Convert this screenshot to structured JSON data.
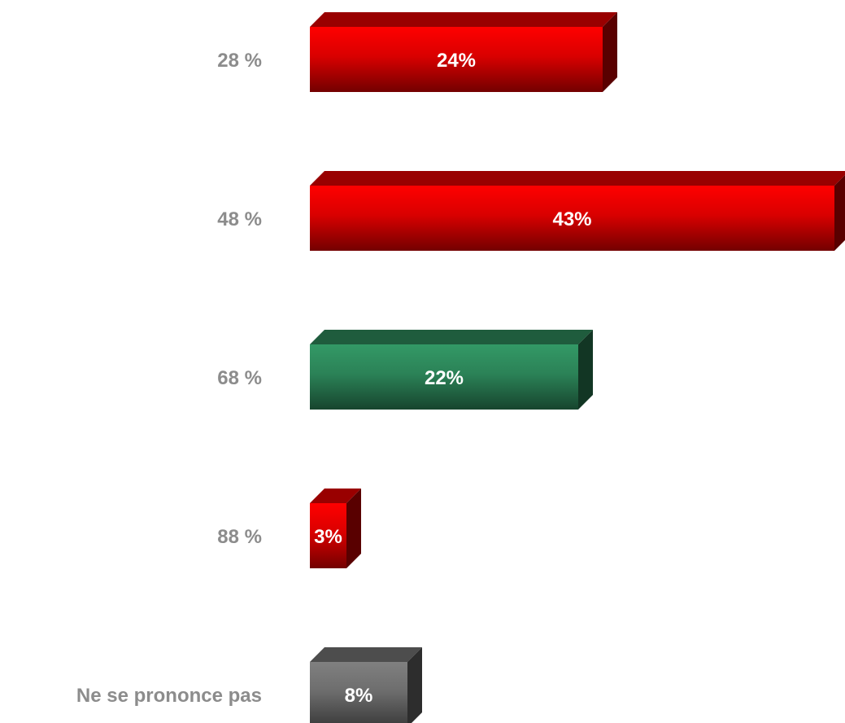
{
  "chart_data": {
    "type": "bar",
    "orientation": "horizontal",
    "style": "3d",
    "categories": [
      "28 %",
      "48 %",
      "68 %",
      "88 %",
      "Ne se prononce pas"
    ],
    "values": [
      24,
      43,
      22,
      3,
      8
    ],
    "value_labels": [
      "24%",
      "43%",
      "22%",
      "3%",
      "8%"
    ],
    "bar_colors": [
      "#ff0000",
      "#ff0000",
      "#339966",
      "#ff0000",
      "#808080"
    ],
    "value_max": 43,
    "grid": false,
    "legend": "none",
    "title": "",
    "xlabel": "",
    "ylabel": ""
  }
}
